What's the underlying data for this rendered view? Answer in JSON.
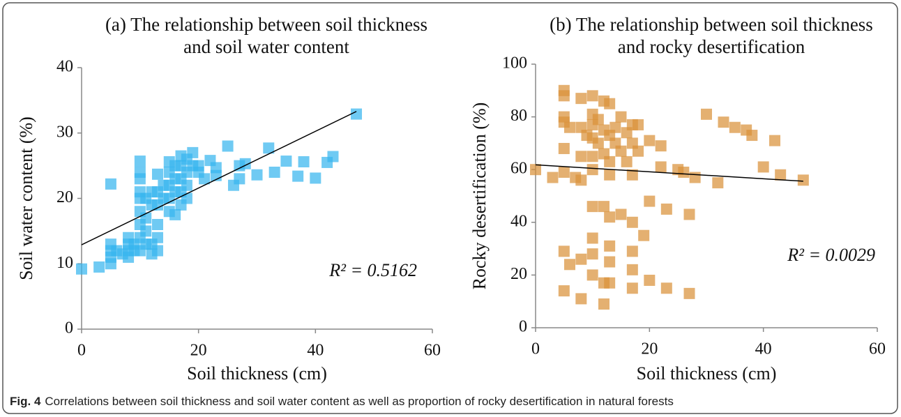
{
  "chart_data": [
    {
      "type": "scatter",
      "title": [
        "(a) The relationship between soil thickness",
        "and soil water content"
      ],
      "xlabel": "Soil thickness (cm)",
      "ylabel": "Soil water content (%)",
      "annotation": "R² = 0.5162",
      "color": "#38b6ee",
      "xlim": [
        0,
        60
      ],
      "xticks": [
        0,
        20,
        40,
        60
      ],
      "ylim": [
        0,
        40
      ],
      "yticks": [
        0,
        10,
        20,
        30,
        40
      ],
      "x": [
        0,
        3,
        5,
        5,
        5,
        5,
        5,
        6,
        7,
        8,
        8,
        8,
        8,
        9,
        9,
        10,
        10,
        10,
        10,
        10,
        10,
        10,
        10,
        10,
        11,
        11,
        11,
        11,
        12,
        12,
        12,
        12,
        13,
        13,
        13,
        13,
        13,
        13,
        14,
        14,
        15,
        15,
        15,
        15,
        15,
        16,
        16,
        16,
        16,
        17,
        17,
        17,
        17,
        17,
        18,
        18,
        18,
        18,
        19,
        19,
        20,
        20,
        21,
        22,
        23,
        23,
        25,
        26,
        27,
        27,
        28,
        30,
        32,
        33,
        35,
        37,
        38,
        40,
        42,
        43,
        47
      ],
      "values": [
        9.2,
        9.5,
        10,
        11,
        12,
        13,
        22.2,
        12,
        11.5,
        11,
        12,
        13,
        14,
        12,
        13,
        12,
        14,
        16,
        18,
        20,
        21,
        23,
        24,
        25.7,
        13,
        15,
        17,
        20,
        11.5,
        13,
        19,
        21,
        12,
        14,
        16,
        19,
        21,
        23.7,
        20,
        22,
        18,
        20,
        22,
        24,
        25.6,
        17.5,
        21,
        23,
        25,
        19,
        21,
        23,
        25,
        26.5,
        20,
        22,
        24,
        26,
        25,
        27,
        24,
        25,
        23,
        25.8,
        23.5,
        24.7,
        28,
        22,
        23,
        25,
        25.3,
        23.6,
        27.7,
        24,
        25.7,
        23.4,
        25.6,
        23.1,
        25.5,
        26.4,
        32.9
      ],
      "trendline": {
        "x": [
          0,
          47
        ],
        "y": [
          12.9,
          33.3
        ]
      }
    },
    {
      "type": "scatter",
      "title": [
        "(b) The relationship between soil thickness",
        "and rocky desertification"
      ],
      "xlabel": "Soil thickness (cm)",
      "ylabel": "Rocky desertification (%)",
      "annotation": "R² = 0.0029",
      "color": "#d9913a",
      "xlim": [
        0,
        60
      ],
      "xticks": [
        0,
        20,
        40,
        60
      ],
      "ylim": [
        0,
        100
      ],
      "yticks": [
        0,
        20,
        40,
        60,
        80,
        100
      ],
      "x": [
        0,
        3,
        5,
        5,
        5,
        5,
        5,
        5,
        5,
        5,
        6,
        6,
        7,
        8,
        8,
        8,
        8,
        8,
        8,
        9,
        10,
        10,
        10,
        10,
        10,
        10,
        10,
        10,
        10,
        10,
        11,
        11,
        12,
        12,
        12,
        12,
        12,
        12,
        13,
        13,
        13,
        13,
        13,
        13,
        13,
        13,
        14,
        14,
        15,
        15,
        15,
        16,
        16,
        17,
        17,
        17,
        17,
        17,
        17,
        17,
        18,
        18,
        19,
        20,
        20,
        20,
        22,
        22,
        23,
        23,
        25,
        26,
        27,
        27,
        28,
        30,
        32,
        33,
        35,
        37,
        38,
        40,
        42,
        43,
        47
      ],
      "values": [
        60,
        57,
        90,
        88,
        80,
        78,
        68,
        59,
        29,
        14,
        76,
        24,
        57,
        87,
        76,
        65,
        56,
        26,
        11,
        73,
        88,
        81,
        77,
        72,
        65,
        60,
        46,
        34,
        28,
        20,
        79,
        70,
        86,
        75,
        66,
        46,
        17,
        9,
        85,
        73,
        63,
        58,
        42,
        31,
        25,
        17,
        76,
        70,
        80,
        67,
        43,
        74,
        63,
        77,
        70,
        58,
        40,
        29,
        22,
        15,
        77,
        67,
        35,
        71,
        48,
        18,
        69,
        61,
        45,
        15,
        60,
        59,
        43,
        13,
        57,
        81,
        55,
        78,
        76,
        75,
        73,
        61,
        71,
        58,
        56
      ],
      "trendline": {
        "x": [
          0,
          47
        ],
        "y": [
          61.8,
          55.6
        ]
      }
    }
  ],
  "caption": {
    "label": "Fig. 4",
    "text": "Correlations between soil thickness and soil water content as well as proportion of rocky desertification in natural forests"
  }
}
